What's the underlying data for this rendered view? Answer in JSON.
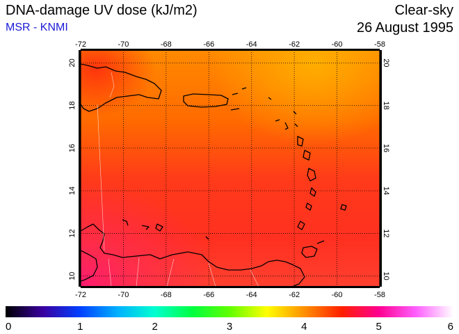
{
  "header": {
    "title": "DNA-damage UV dose (kJ/m2)",
    "credit": "MSR - KNMI",
    "condition": "Clear-sky",
    "date": "26 August 1995"
  },
  "map": {
    "lon_range": [
      -72,
      -58
    ],
    "lat_range": [
      9.5,
      20.6
    ],
    "lon_ticks": [
      -72,
      -70,
      -68,
      -66,
      -64,
      -62,
      -60,
      -58
    ],
    "lon_tick_labels": [
      "-72",
      "-70",
      "-68",
      "-66",
      "-64",
      "-62",
      "-60",
      "-58"
    ],
    "lat_ticks": [
      10,
      12,
      14,
      16,
      18,
      20
    ],
    "lat_tick_labels": [
      "10",
      "12",
      "14",
      "16",
      "18",
      "20"
    ],
    "grid": "dotted"
  },
  "colorbar": {
    "min": 0,
    "max": 6,
    "tick_values": [
      0,
      1,
      2,
      3,
      4,
      5,
      6
    ],
    "tick_labels": [
      "0",
      "1",
      "2",
      "3",
      "4",
      "5",
      "6"
    ],
    "colors": [
      "#000000",
      "#3a00a0",
      "#0040ff",
      "#00b0ff",
      "#00ffd0",
      "#00ff40",
      "#60ff00",
      "#ffff00",
      "#ff9000",
      "#ff2000",
      "#ff0090",
      "#ff60ff",
      "#ffffff"
    ]
  }
}
